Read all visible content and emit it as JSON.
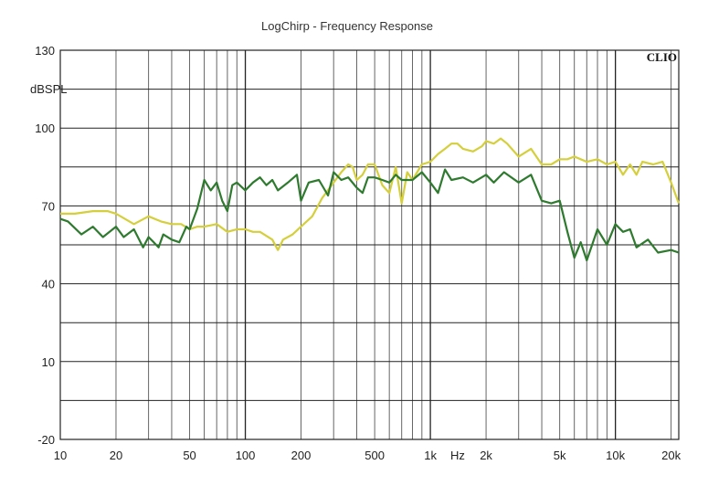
{
  "chart_data": {
    "type": "line",
    "title": "LogChirp - Frequency Response",
    "brand": "CLIO",
    "ylabel": "dBSPL",
    "xlabel": "Hz",
    "x_scale": "log",
    "xlim": [
      10,
      22000
    ],
    "ylim": [
      -20,
      130
    ],
    "grid": true,
    "y_tick_labels": [
      "130",
      "100",
      "70",
      "40",
      "10",
      "-20"
    ],
    "y_tick_values": [
      130,
      100,
      70,
      40,
      10,
      -20
    ],
    "x_tick_labels": [
      "10",
      "20",
      "50",
      "100",
      "200",
      "500",
      "1k",
      "2k",
      "5k",
      "10k",
      "20k"
    ],
    "x_tick_values": [
      10,
      20,
      50,
      100,
      200,
      500,
      1000,
      2000,
      5000,
      10000,
      20000
    ],
    "colors": {
      "grid_major": "#222222",
      "grid_minor": "#555555",
      "background": "#ffffff"
    },
    "series": [
      {
        "color": "#d4cf3a",
        "x": [
          10,
          12,
          15,
          18,
          20,
          25,
          30,
          35,
          40,
          45,
          50,
          55,
          60,
          70,
          80,
          90,
          100,
          110,
          120,
          140,
          150,
          160,
          180,
          200,
          230,
          260,
          300,
          330,
          360,
          380,
          400,
          430,
          460,
          500,
          550,
          600,
          650,
          700,
          750,
          800,
          900,
          1000,
          1100,
          1200,
          1300,
          1400,
          1500,
          1700,
          1900,
          2000,
          2200,
          2400,
          2600,
          3000,
          3500,
          4000,
          4500,
          5000,
          5500,
          6000,
          6500,
          7000,
          8000,
          9000,
          10000,
          11000,
          12000,
          13000,
          14000,
          16000,
          18000,
          20000,
          22000
        ],
        "values": [
          67,
          67,
          68,
          68,
          67,
          63,
          66,
          64,
          63,
          63,
          61,
          62,
          62,
          63,
          60,
          61,
          61,
          60,
          60,
          57,
          53,
          57,
          59,
          62,
          66,
          73,
          79,
          83,
          86,
          85,
          80,
          82,
          86,
          86,
          78,
          75,
          85,
          71,
          83,
          80,
          86,
          87,
          90,
          92,
          94,
          94,
          92,
          91,
          93,
          95,
          94,
          96,
          94,
          89,
          92,
          86,
          86,
          88,
          88,
          89,
          88,
          87,
          88,
          86,
          87,
          82,
          86,
          82,
          87,
          86,
          87,
          79,
          71
        ]
      },
      {
        "color": "#2e7a2e",
        "x": [
          10,
          11,
          13,
          15,
          17,
          20,
          22,
          25,
          28,
          30,
          32,
          34,
          36,
          40,
          44,
          48,
          50,
          55,
          60,
          65,
          70,
          75,
          80,
          85,
          90,
          100,
          110,
          120,
          130,
          140,
          150,
          170,
          190,
          200,
          220,
          250,
          280,
          300,
          330,
          360,
          400,
          430,
          460,
          500,
          550,
          600,
          650,
          700,
          800,
          900,
          1000,
          1100,
          1200,
          1300,
          1500,
          1700,
          2000,
          2200,
          2500,
          3000,
          3500,
          4000,
          4500,
          5000,
          5500,
          6000,
          6500,
          7000,
          8000,
          9000,
          10000,
          11000,
          12000,
          13000,
          15000,
          17000,
          20000,
          22000
        ],
        "values": [
          65,
          64,
          59,
          62,
          58,
          62,
          58,
          61,
          54,
          58,
          56,
          54,
          59,
          57,
          56,
          62,
          61,
          69,
          80,
          76,
          79,
          72,
          68,
          78,
          79,
          76,
          79,
          81,
          78,
          80,
          76,
          79,
          82,
          72,
          79,
          80,
          74,
          83,
          80,
          81,
          77,
          75,
          81,
          81,
          80,
          79,
          82,
          80,
          80,
          83,
          79,
          75,
          84,
          80,
          81,
          79,
          82,
          79,
          83,
          79,
          82,
          72,
          71,
          72,
          60,
          50,
          56,
          49,
          61,
          55,
          63,
          60,
          61,
          54,
          57,
          52,
          53,
          52
        ]
      }
    ]
  }
}
